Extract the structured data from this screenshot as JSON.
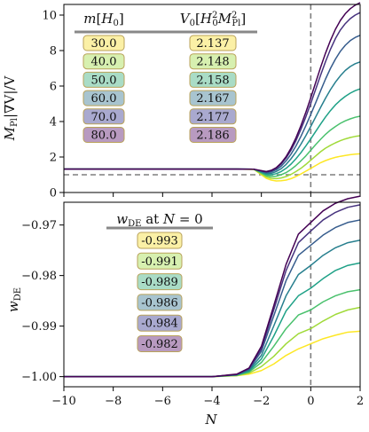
{
  "colors": {
    "lines": [
      "#fde725",
      "#a0da39",
      "#4ac16d",
      "#1fa187",
      "#277f8e",
      "#365c8d",
      "#46327e",
      "#440154"
    ],
    "cells": [
      "#fbf0a6",
      "#d7f0b0",
      "#a9dcc6",
      "#a8c4cf",
      "#a9a9cf",
      "#b89ac0"
    ],
    "cell_border": "#b9a25a",
    "reference_line": "#7f7f7f"
  },
  "chart_data": [
    {
      "type": "line",
      "title": "",
      "xlabel": "",
      "ylabel": "M_Pl |∇V| / V",
      "xlim": [
        -10,
        2
      ],
      "ylim": [
        0,
        10.6
      ],
      "x_ticks": [
        -10,
        -8,
        -6,
        -4,
        -2,
        0,
        2
      ],
      "y_ticks": [
        0,
        2,
        4,
        6,
        8,
        10
      ],
      "y_tick_labels": [
        "0",
        "2",
        "4",
        "6",
        "8",
        "10"
      ],
      "grid": false,
      "hline": 1,
      "vline": 0,
      "table": {
        "headers": [
          "m[H₀]",
          "V₀[H₀²M_Pl²]"
        ],
        "rows": [
          [
            "30.0",
            "2.137"
          ],
          [
            "40.0",
            "2.148"
          ],
          [
            "50.0",
            "2.158"
          ],
          [
            "60.0",
            "2.167"
          ],
          [
            "70.0",
            "2.177"
          ],
          [
            "80.0",
            "2.186"
          ]
        ]
      },
      "x": [
        -10,
        -3,
        -2.3,
        -2.0,
        -1.8,
        -1.6,
        -1.4,
        -1.2,
        -1.0,
        -0.8,
        -0.6,
        -0.4,
        -0.2,
        0,
        0.2,
        0.4,
        0.6,
        0.8,
        1.0,
        1.2,
        1.4,
        1.6,
        1.8,
        2.0
      ],
      "series": [
        {
          "values": [
            1.32,
            1.32,
            1.3,
            1.0,
            0.8,
            0.7,
            0.65,
            0.66,
            0.7,
            0.78,
            0.9,
            1.04,
            1.2,
            1.36,
            1.52,
            1.68,
            1.8,
            1.9,
            1.98,
            2.04,
            2.09,
            2.13,
            2.16,
            2.18
          ]
        },
        {
          "values": [
            1.32,
            1.32,
            1.3,
            1.05,
            0.88,
            0.8,
            0.78,
            0.82,
            0.9,
            1.02,
            1.18,
            1.36,
            1.58,
            1.82,
            2.06,
            2.3,
            2.5,
            2.66,
            2.8,
            2.92,
            3.02,
            3.1,
            3.16,
            3.2
          ]
        },
        {
          "values": [
            1.32,
            1.32,
            1.31,
            1.1,
            0.95,
            0.9,
            0.92,
            1.0,
            1.12,
            1.3,
            1.52,
            1.78,
            2.06,
            2.38,
            2.7,
            3.0,
            3.28,
            3.52,
            3.72,
            3.9,
            4.04,
            4.15,
            4.24,
            4.3
          ]
        },
        {
          "values": [
            1.32,
            1.32,
            1.31,
            1.14,
            1.02,
            1.0,
            1.06,
            1.18,
            1.36,
            1.6,
            1.9,
            2.24,
            2.62,
            3.02,
            3.44,
            3.86,
            4.26,
            4.62,
            4.94,
            5.2,
            5.42,
            5.6,
            5.74,
            5.84
          ]
        },
        {
          "values": [
            1.32,
            1.32,
            1.31,
            1.17,
            1.08,
            1.08,
            1.18,
            1.34,
            1.58,
            1.9,
            2.28,
            2.72,
            3.2,
            3.72,
            4.26,
            4.8,
            5.32,
            5.8,
            6.22,
            6.58,
            6.88,
            7.1,
            7.26,
            7.36
          ]
        },
        {
          "values": [
            1.32,
            1.32,
            1.31,
            1.2,
            1.12,
            1.16,
            1.28,
            1.48,
            1.78,
            2.16,
            2.62,
            3.16,
            3.76,
            4.4,
            5.06,
            5.74,
            6.4,
            7.0,
            7.52,
            7.96,
            8.3,
            8.56,
            8.74,
            8.86
          ]
        },
        {
          "values": [
            1.32,
            1.32,
            1.31,
            1.22,
            1.16,
            1.22,
            1.36,
            1.6,
            1.94,
            2.38,
            2.92,
            3.56,
            4.26,
            5.02,
            5.82,
            6.62,
            7.38,
            8.08,
            8.68,
            9.16,
            9.52,
            9.8,
            10.0,
            10.14
          ]
        },
        {
          "values": [
            1.32,
            1.32,
            1.31,
            1.23,
            1.18,
            1.25,
            1.4,
            1.66,
            2.02,
            2.5,
            3.08,
            3.76,
            4.52,
            5.34,
            6.2,
            7.06,
            7.86,
            8.58,
            9.2,
            9.7,
            10.08,
            10.36,
            10.56,
            10.7
          ]
        }
      ]
    },
    {
      "type": "line",
      "title": "",
      "xlabel": "N",
      "ylabel": "w_DE",
      "xlim": [
        -10,
        2
      ],
      "ylim": [
        -1.002,
        -0.9655
      ],
      "x_ticks": [
        -10,
        -8,
        -6,
        -4,
        -2,
        0,
        2
      ],
      "x_tick_labels": [
        "−10",
        "−8",
        "−6",
        "−4",
        "−2",
        "0",
        "2"
      ],
      "y_ticks": [
        -1.0,
        -0.99,
        -0.98,
        -0.97
      ],
      "y_tick_labels": [
        "−1.00",
        "−0.99",
        "−0.98",
        "−0.97"
      ],
      "grid": false,
      "vline": 0,
      "table": {
        "headers": [
          "w_DE at N = 0"
        ],
        "rows": [
          [
            "-0.993"
          ],
          [
            "-0.991"
          ],
          [
            "-0.989"
          ],
          [
            "-0.986"
          ],
          [
            "-0.984"
          ],
          [
            "-0.982"
          ]
        ]
      },
      "x": [
        -10,
        -4,
        -3,
        -2.5,
        -2.0,
        -1.5,
        -1.0,
        -0.5,
        0,
        0.5,
        1.0,
        1.5,
        2.0
      ],
      "series": [
        {
          "values": [
            -1.0,
            -1.0,
            -0.9998,
            -0.9995,
            -0.9988,
            -0.9975,
            -0.9958,
            -0.9945,
            -0.9935,
            -0.9925,
            -0.9918,
            -0.9912,
            -0.991
          ]
        },
        {
          "values": [
            -1.0,
            -1.0,
            -0.9998,
            -0.9993,
            -0.998,
            -0.996,
            -0.9935,
            -0.9915,
            -0.9905,
            -0.989,
            -0.9877,
            -0.9868,
            -0.9863
          ]
        },
        {
          "values": [
            -1.0,
            -1.0,
            -0.9997,
            -0.9991,
            -0.9972,
            -0.994,
            -0.9905,
            -0.9878,
            -0.9868,
            -0.9852,
            -0.984,
            -0.9832,
            -0.9828
          ]
        },
        {
          "values": [
            -1.0,
            -1.0,
            -0.9997,
            -0.9989,
            -0.9965,
            -0.992,
            -0.987,
            -0.984,
            -0.9825,
            -0.9806,
            -0.979,
            -0.978,
            -0.9775
          ]
        },
        {
          "values": [
            -1.0,
            -1.0,
            -0.9996,
            -0.9987,
            -0.9958,
            -0.99,
            -0.984,
            -0.9798,
            -0.978,
            -0.976,
            -0.9745,
            -0.9735,
            -0.973
          ]
        },
        {
          "values": [
            -1.0,
            -1.0,
            -0.9996,
            -0.9985,
            -0.995,
            -0.988,
            -0.981,
            -0.976,
            -0.974,
            -0.972,
            -0.9705,
            -0.9695,
            -0.969
          ]
        },
        {
          "values": [
            -1.0,
            -1.0,
            -0.9996,
            -0.9984,
            -0.9945,
            -0.9868,
            -0.979,
            -0.9735,
            -0.9712,
            -0.969,
            -0.9675,
            -0.9665,
            -0.966
          ]
        },
        {
          "values": [
            -1.0,
            -1.0,
            -0.9995,
            -0.9983,
            -0.994,
            -0.986,
            -0.9778,
            -0.9718,
            -0.9695,
            -0.9672,
            -0.9657,
            -0.9648,
            -0.9643
          ]
        }
      ]
    }
  ]
}
